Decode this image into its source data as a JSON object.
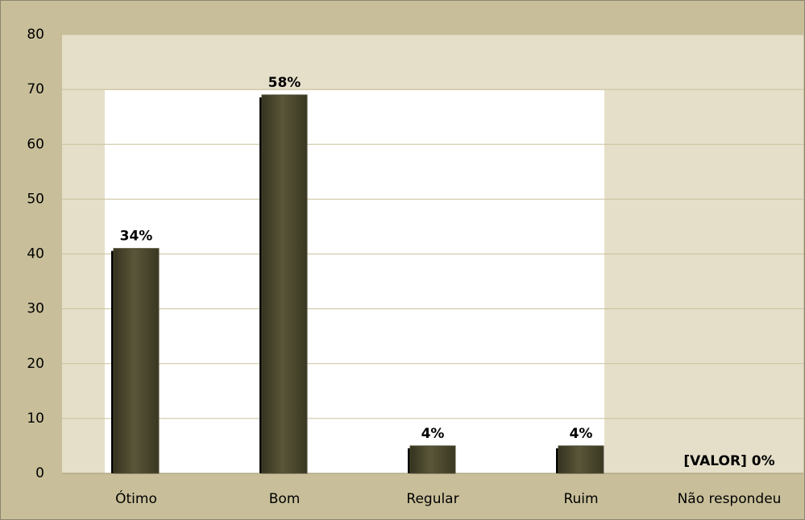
{
  "chart_data": {
    "type": "bar",
    "categories": [
      "Ótimo",
      "Bom",
      "Regular",
      "Ruim",
      "Não respondeu"
    ],
    "values": [
      41,
      69,
      5,
      5,
      0
    ],
    "value_labels": [
      "34%",
      "58%",
      "4%",
      "4%",
      "[VALOR] 0%"
    ],
    "color": "#4d4a30",
    "ylim": [
      0,
      80
    ],
    "yticks": [
      0,
      10,
      20,
      30,
      40,
      50,
      60,
      70,
      80
    ],
    "grid": true
  }
}
